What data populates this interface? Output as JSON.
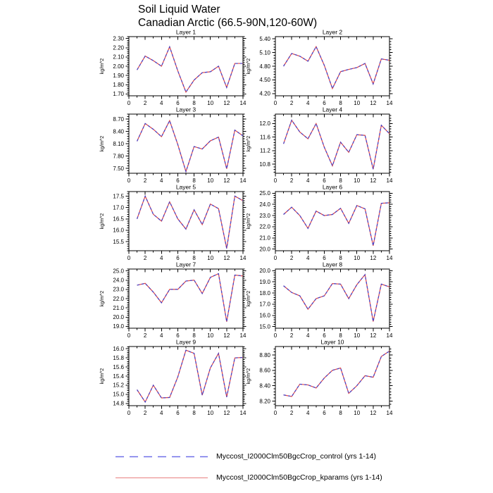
{
  "header": {
    "title_line1": "Soil Liquid Water",
    "title_line2": "Canadian Arctic (66.5-90N,120-60W)"
  },
  "chart_data": {
    "type": "line",
    "x": [
      1,
      2,
      3,
      4,
      5,
      6,
      7,
      8,
      9,
      10,
      11,
      12,
      13,
      14
    ],
    "xlim": [
      0,
      14
    ],
    "xtick_labels": [
      "0",
      "2",
      "4",
      "6",
      "8",
      "10",
      "12",
      "14"
    ],
    "ylabel": "kg/m^2",
    "series_names": [
      "control",
      "kparams"
    ],
    "series_overlap": true,
    "panels": [
      {
        "title": "Layer 1",
        "ytick_labels": [
          "1.70",
          "1.80",
          "1.90",
          "2.00",
          "2.10",
          "2.20",
          "2.30"
        ],
        "ylim": [
          1.68,
          2.32
        ],
        "values": [
          1.96,
          2.11,
          2.06,
          2.0,
          2.21,
          1.95,
          1.72,
          1.85,
          1.93,
          1.94,
          2.0,
          1.77,
          2.03,
          2.03
        ]
      },
      {
        "title": "Layer 2",
        "ytick_labels": [
          "4.20",
          "4.50",
          "4.80",
          "5.10",
          "5.40"
        ],
        "ylim": [
          4.15,
          5.45
        ],
        "values": [
          4.8,
          5.08,
          5.02,
          4.91,
          5.23,
          4.82,
          4.31,
          4.68,
          4.73,
          4.77,
          4.86,
          4.41,
          4.96,
          4.93
        ]
      },
      {
        "title": "Layer 3",
        "ytick_labels": [
          "7.50",
          "7.80",
          "8.10",
          "8.40",
          "8.70"
        ],
        "ylim": [
          7.38,
          8.82
        ],
        "values": [
          8.16,
          8.59,
          8.45,
          8.27,
          8.66,
          8.08,
          7.42,
          8.03,
          7.97,
          8.17,
          8.26,
          7.49,
          8.43,
          8.29
        ]
      },
      {
        "title": "Layer 4",
        "ytick_labels": [
          "10.8",
          "11.2",
          "11.6",
          "12.0"
        ],
        "ylim": [
          10.53,
          12.28
        ],
        "values": [
          11.4,
          12.1,
          11.75,
          11.55,
          12.0,
          11.3,
          10.75,
          11.45,
          11.15,
          11.67,
          11.65,
          10.65,
          11.95,
          11.7
        ]
      },
      {
        "title": "Layer 5",
        "ytick_labels": [
          "15.5",
          "16.0",
          "16.5",
          "17.0",
          "17.5"
        ],
        "ylim": [
          15.1,
          17.7
        ],
        "values": [
          16.5,
          17.5,
          16.7,
          16.4,
          17.25,
          16.5,
          16.05,
          16.9,
          16.25,
          17.15,
          16.95,
          15.2,
          17.5,
          17.3
        ]
      },
      {
        "title": "Layer 6",
        "ytick_labels": [
          "20.0",
          "21.0",
          "22.0",
          "23.0",
          "24.0",
          "25.0"
        ],
        "ylim": [
          19.85,
          25.15
        ],
        "values": [
          23.1,
          23.75,
          23.0,
          21.85,
          23.4,
          23.0,
          23.1,
          23.65,
          22.3,
          23.9,
          23.6,
          20.3,
          24.1,
          24.15
        ]
      },
      {
        "title": "Layer 7",
        "ytick_labels": [
          "19.0",
          "20.0",
          "21.0",
          "22.0",
          "23.0",
          "24.0",
          "25.0"
        ],
        "ylim": [
          18.8,
          25.2
        ],
        "values": [
          23.45,
          23.65,
          22.7,
          21.55,
          23.0,
          23.0,
          23.9,
          24.0,
          22.55,
          24.3,
          24.7,
          19.5,
          24.55,
          24.45
        ]
      },
      {
        "title": "Layer 8",
        "ytick_labels": [
          "15.0",
          "16.0",
          "17.0",
          "18.0",
          "19.0",
          "20.0"
        ],
        "ylim": [
          14.85,
          20.15
        ],
        "values": [
          18.65,
          18.05,
          17.75,
          16.55,
          17.5,
          17.75,
          18.85,
          18.8,
          17.5,
          18.75,
          19.65,
          15.45,
          18.8,
          18.55
        ]
      },
      {
        "title": "Layer 9",
        "ytick_labels": [
          "14.8",
          "15.0",
          "15.2",
          "15.4",
          "15.6",
          "15.8",
          "16.0"
        ],
        "ylim": [
          14.75,
          16.05
        ],
        "values": [
          15.1,
          14.83,
          15.2,
          14.92,
          14.93,
          15.38,
          15.97,
          15.9,
          14.98,
          15.58,
          15.9,
          14.94,
          15.8,
          15.81
        ]
      },
      {
        "title": "Layer 10",
        "ytick_labels": [
          "8.20",
          "8.40",
          "8.60",
          "8.80"
        ],
        "ylim": [
          8.14,
          8.91
        ],
        "values": [
          8.28,
          8.26,
          8.42,
          8.41,
          8.37,
          8.5,
          8.6,
          8.63,
          8.3,
          8.4,
          8.53,
          8.51,
          8.78,
          8.85
        ]
      }
    ],
    "legend": [
      {
        "label": "Myccost_I2000Clm50BgcCrop_control (yrs 1-14)",
        "style": "dashed",
        "color": "#7070E8"
      },
      {
        "label": "Myccost_I2000Clm50BgcCrop_kparams (yrs 1-14)",
        "style": "solid",
        "color": "#E88080"
      }
    ],
    "plot_colors": {
      "control": "#4343CC",
      "kparams": "#E04545"
    }
  }
}
